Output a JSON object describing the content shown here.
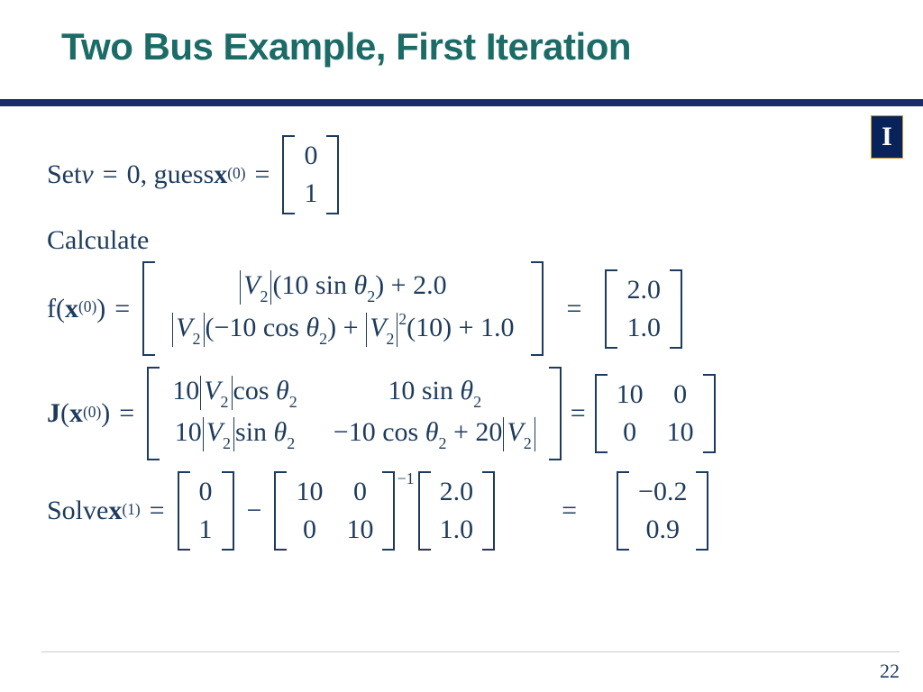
{
  "colors": {
    "title": "#1b6b66",
    "rule": "#1b2a6b",
    "text": "#1d3b5c",
    "footer_rule": "#c7ccd6",
    "logo_bg": "#08235a",
    "logo_border": "#c99a2e",
    "logo_fg": "#ffffff",
    "background": "#ffffff"
  },
  "fonts": {
    "title_family": "Arial",
    "title_size_pt": 32,
    "body_family": "Times New Roman",
    "body_size_pt": 22
  },
  "title": "Two Bus Example, First Iteration",
  "page_number": "22",
  "logo_letter": "I",
  "line1": {
    "pre": "Set ",
    "v_var": "v",
    "eq1": "=",
    "zero": "0",
    "mid": ", guess ",
    "x": "x",
    "x_sup": "(0)",
    "eq2": "=",
    "vec": [
      "0",
      "1"
    ]
  },
  "line_calc": "Calculate",
  "f_row": {
    "f": "f(",
    "x": "x",
    "x_sup": "(0)",
    "close": ")",
    "eq1": "=",
    "cells": [
      "|V₂|(10 sin θ₂) + 2.0",
      "|V₂|(−10 cos θ₂) + |V₂|²(10) + 1.0"
    ],
    "r1_a": "V",
    "r1_a_sub": "2",
    "r1_b": "(10 sin ",
    "r1_theta": "θ",
    "r1_theta_sub": "2",
    "r1_c": ") + 2.0",
    "r2_a": "V",
    "r2_a_sub": "2",
    "r2_b": "(−10 cos ",
    "r2_theta": "θ",
    "r2_theta_sub": "2",
    "r2_c": ") + ",
    "r2_d": "V",
    "r2_d_sub": "2",
    "r2_d_sup": "2",
    "r2_e": "(10) + 1.0",
    "eq2": "=",
    "result": [
      "2.0",
      "1.0"
    ]
  },
  "j_row": {
    "J": "J",
    "open": "(",
    "x": "x",
    "x_sup": "(0)",
    "close": ")",
    "eq1": "=",
    "c11_a": "10",
    "c11_v": "V",
    "c11_vsub": "2",
    "c11_b": "cos ",
    "c11_t": "θ",
    "c11_tsub": "2",
    "c12_a": "10 sin ",
    "c12_t": "θ",
    "c12_tsub": "2",
    "c21_a": "10",
    "c21_v": "V",
    "c21_vsub": "2",
    "c21_b": "sin ",
    "c21_t": "θ",
    "c21_tsub": "2",
    "c22_a": "−10 cos ",
    "c22_t": "θ",
    "c22_tsub": "2",
    "c22_b": " + 20",
    "c22_v": "V",
    "c22_vsub": "2",
    "eq2": "=",
    "result": [
      [
        "10",
        "0"
      ],
      [
        "0",
        "10"
      ]
    ]
  },
  "solve_row": {
    "pre": "Solve  ",
    "x": "x",
    "x_sup": "(1)",
    "eq1": "=",
    "vec1": [
      "0",
      "1"
    ],
    "minus": "−",
    "mat": [
      [
        "10",
        "0"
      ],
      [
        "0",
        "10"
      ]
    ],
    "mat_sup": "−1",
    "vec2": [
      "2.0",
      "1.0"
    ],
    "eq2": "=",
    "result": [
      "−0.2",
      "0.9"
    ]
  }
}
